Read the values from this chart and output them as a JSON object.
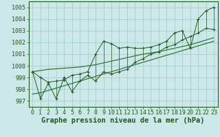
{
  "title": "Graphe pression niveau de la mer (hPa)",
  "x_values": [
    0,
    1,
    2,
    3,
    4,
    5,
    6,
    7,
    8,
    9,
    10,
    11,
    12,
    13,
    14,
    15,
    16,
    17,
    18,
    19,
    20,
    21,
    22,
    23
  ],
  "y_values": [
    999.5,
    999.0,
    998.6,
    998.7,
    998.8,
    999.2,
    999.3,
    999.5,
    1001.0,
    1002.1,
    1001.9,
    1001.5,
    1001.6,
    1001.5,
    1001.5,
    1001.6,
    1001.8,
    1002.1,
    1002.8,
    1003.0,
    1001.5,
    1004.0,
    1004.7,
    1005.0
  ],
  "y_low": [
    999.5,
    997.2,
    998.5,
    997.2,
    999.0,
    997.8,
    998.7,
    999.2,
    998.7,
    999.5,
    999.3,
    999.5,
    999.7,
    1000.3,
    1000.6,
    1001.0,
    1001.2,
    1001.6,
    1001.8,
    1002.2,
    1002.5,
    1002.8,
    1003.2,
    1003.1
  ],
  "y_smooth_low": [
    997.6,
    997.7,
    997.9,
    998.1,
    998.3,
    998.5,
    998.7,
    998.9,
    999.1,
    999.3,
    999.5,
    999.7,
    999.9,
    1000.1,
    1000.3,
    1000.5,
    1000.7,
    1000.9,
    1001.1,
    1001.3,
    1001.5,
    1001.7,
    1001.9,
    1002.1
  ],
  "y_smooth_high": [
    999.5,
    999.6,
    999.7,
    999.75,
    999.8,
    999.85,
    999.9,
    1000.0,
    1000.1,
    1000.25,
    1000.4,
    1000.55,
    1000.7,
    1000.85,
    1001.0,
    1001.1,
    1001.2,
    1001.35,
    1001.5,
    1001.65,
    1001.8,
    1002.0,
    1002.2,
    1002.4
  ],
  "ylim": [
    996.5,
    1005.5
  ],
  "yticks": [
    997,
    998,
    999,
    1000,
    1001,
    1002,
    1003,
    1004,
    1005
  ],
  "xlim": [
    -0.5,
    23.5
  ],
  "bg_color": "#cce8e8",
  "grid_color": "#99cccc",
  "line_color": "#1a5c1a",
  "smooth_color": "#2d7a2d",
  "title_color": "#1a5c1a",
  "tick_color": "#1a5c1a",
  "title_fontsize": 7.5,
  "tick_fontsize": 6.0
}
